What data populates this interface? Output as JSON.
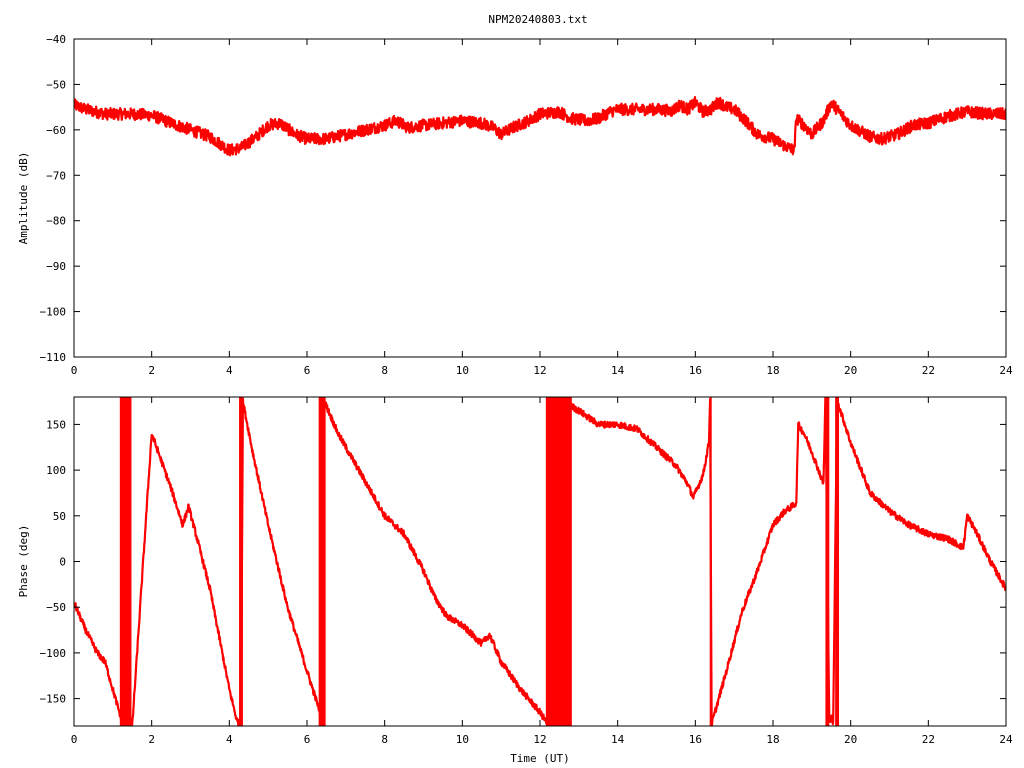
{
  "title": "NPM20240803.txt",
  "chart_data": [
    {
      "type": "line",
      "title": "NPM20240803.txt",
      "xlabel": "",
      "ylabel": "Amplitude (dB)",
      "xlim": [
        0,
        24
      ],
      "ylim": [
        -110,
        -40
      ],
      "xticks": [
        0,
        2,
        4,
        6,
        8,
        10,
        12,
        14,
        16,
        18,
        20,
        22,
        24
      ],
      "yticks": [
        -110,
        -100,
        -90,
        -80,
        -70,
        -60,
        -50,
        -40
      ],
      "xtick_labels": [
        "0",
        "2",
        "4",
        "6",
        "8",
        "10",
        "12",
        "14",
        "16",
        "18",
        "20",
        "22",
        "24"
      ],
      "ytick_labels": [
        "−110",
        "−100",
        "−90",
        "−80",
        "−70",
        "−60",
        "−50",
        "−40"
      ],
      "grid": false,
      "color": "#ff0000",
      "series": [
        {
          "noise": 1.3,
          "x": [
            0,
            0.3,
            0.8,
            1.5,
            2.0,
            2.5,
            3.0,
            3.5,
            4.0,
            4.3,
            4.7,
            5.0,
            5.3,
            5.7,
            6.0,
            6.5,
            7.0,
            7.5,
            8.0,
            8.3,
            8.6,
            9.0,
            9.5,
            10.0,
            10.5,
            10.8,
            11.0,
            11.3,
            11.7,
            12.0,
            12.5,
            12.8,
            13.2,
            13.5,
            13.8,
            14.0,
            14.5,
            15.0,
            15.4,
            15.6,
            15.8,
            16.0,
            16.2,
            16.4,
            16.6,
            16.8,
            17.0,
            17.3,
            17.6,
            18.0,
            18.3,
            18.55,
            18.6,
            18.8,
            19.0,
            19.3,
            19.5,
            19.7,
            20.0,
            20.5,
            20.8,
            21.2,
            21.6,
            22.0,
            22.5,
            23.0,
            23.5,
            24.0
          ],
          "y": [
            -54.5,
            -55.5,
            -56.5,
            -56.5,
            -56.8,
            -58.5,
            -60,
            -61.5,
            -64.5,
            -64,
            -61.5,
            -59,
            -58.5,
            -61,
            -62,
            -62,
            -61,
            -60,
            -59,
            -58,
            -59.5,
            -59,
            -58.5,
            -58,
            -58.5,
            -59.5,
            -61,
            -59.5,
            -58,
            -56.5,
            -56,
            -57.5,
            -58,
            -57.5,
            -56,
            -55.5,
            -55.5,
            -55.5,
            -55.8,
            -54.5,
            -55.5,
            -54,
            -56,
            -55.5,
            -53.8,
            -55,
            -55.5,
            -58,
            -61,
            -62,
            -63.5,
            -64.5,
            -57.5,
            -59,
            -61,
            -58,
            -54,
            -56,
            -59,
            -61.5,
            -62,
            -61,
            -59,
            -58.5,
            -57,
            -56,
            -56.5,
            -56.5
          ]
        }
      ]
    },
    {
      "type": "line",
      "title": "",
      "xlabel": "Time (UT)",
      "ylabel": "Phase (deg)",
      "xlim": [
        0,
        24
      ],
      "ylim": [
        -180,
        180
      ],
      "xticks": [
        0,
        2,
        4,
        6,
        8,
        10,
        12,
        14,
        16,
        18,
        20,
        22,
        24
      ],
      "yticks": [
        -150,
        -100,
        -50,
        0,
        50,
        100,
        150
      ],
      "xtick_labels": [
        "0",
        "2",
        "4",
        "6",
        "8",
        "10",
        "12",
        "14",
        "16",
        "18",
        "20",
        "22",
        "24"
      ],
      "ytick_labels": [
        "−150",
        "−100",
        "−50",
        "0",
        "50",
        "100",
        "150"
      ],
      "grid": false,
      "color": "#ff0000",
      "series": [
        {
          "noise": 3.5,
          "x": [
            0,
            0.3,
            0.6,
            0.8,
            1.0,
            1.2,
            1.3,
            1.5,
            2.0,
            2.5,
            2.8,
            2.95,
            3.2,
            3.5,
            4.0,
            4.2,
            4.3,
            4.35,
            4.6,
            5.0,
            5.5,
            6.0,
            6.3,
            6.4,
            6.45,
            6.8,
            7.2,
            7.6,
            8.0,
            8.5,
            9.0,
            9.1,
            9.3,
            9.6,
            10.0,
            10.5,
            10.7,
            11.0,
            11.5,
            12.0,
            12.2,
            12.3,
            12.7,
            12.8,
            13.0,
            13.5,
            14.0,
            14.5,
            15.0,
            15.5,
            15.8,
            15.95,
            16.2,
            16.35,
            16.38,
            16.42,
            16.8,
            17.2,
            17.6,
            18.0,
            18.3,
            18.55,
            18.6,
            18.65,
            18.8,
            19.0,
            19.3,
            19.35,
            19.45,
            19.5,
            19.55,
            19.65,
            19.7,
            20.0,
            20.5,
            21.0,
            21.5,
            22.0,
            22.5,
            22.9,
            23.0,
            23.2,
            23.6,
            24.0
          ],
          "y": [
            -45,
            -75,
            -100,
            -110,
            -140,
            -170,
            -175,
            -180,
            140,
            80,
            40,
            60,
            20,
            -30,
            -140,
            -175,
            -178,
            175,
            120,
            40,
            -50,
            -120,
            -160,
            -175,
            175,
            140,
            110,
            80,
            50,
            30,
            -10,
            -20,
            -40,
            -60,
            -70,
            -90,
            -80,
            -110,
            -140,
            -165,
            -178,
            -175,
            178,
            170,
            165,
            150,
            150,
            145,
            125,
            105,
            85,
            70,
            95,
            130,
            178,
            -178,
            -120,
            -55,
            -10,
            40,
            55,
            62,
            65,
            150,
            140,
            120,
            85,
            180,
            -175,
            -170,
            -178,
            178,
            170,
            130,
            75,
            55,
            40,
            30,
            25,
            15,
            50,
            35,
            0,
            -30
          ]
        }
      ],
      "vertical_bands": [
        [
          1.18,
          1.48
        ],
        [
          4.25,
          4.35
        ],
        [
          6.3,
          6.48
        ],
        [
          12.15,
          12.82
        ],
        [
          16.37,
          16.42
        ],
        [
          19.35,
          19.45
        ],
        [
          19.6,
          19.7
        ]
      ]
    }
  ]
}
